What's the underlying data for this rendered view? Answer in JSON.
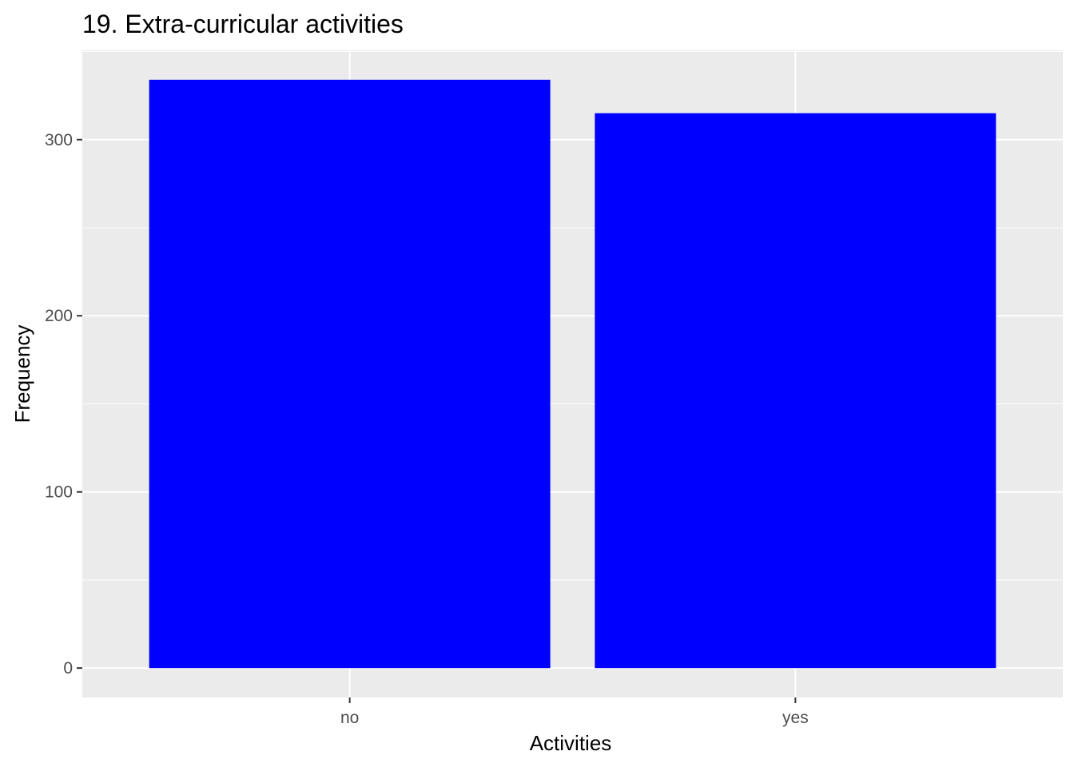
{
  "chart_data": {
    "type": "bar",
    "title": "19. Extra-curricular activities",
    "xlabel": "Activities",
    "ylabel": "Frequency",
    "categories": [
      "no",
      "yes"
    ],
    "values": [
      334,
      315
    ],
    "ylim": [
      -16.7,
      350.7
    ],
    "yticks": [
      0,
      100,
      200,
      300
    ],
    "ytick_labels": [
      "0",
      "100",
      "200",
      "300"
    ],
    "grid": true,
    "colors": {
      "bar": "#0000FF",
      "panel": "#EBEBEB",
      "grid": "#FFFFFF",
      "tick_text": "#4D4D4D",
      "tick_mark": "#333333"
    }
  }
}
